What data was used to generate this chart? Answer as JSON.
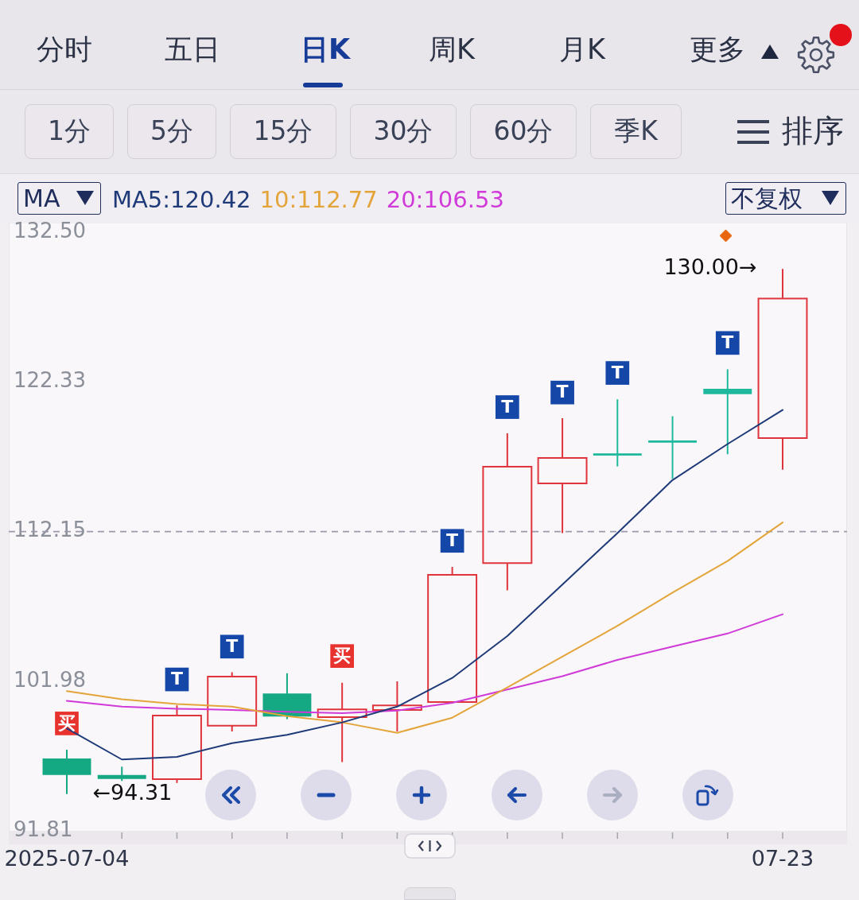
{
  "chart_data": {
    "type": "candlestick",
    "categories": [
      "2025-07-04",
      null,
      null,
      null,
      null,
      null,
      null,
      null,
      null,
      null,
      null,
      null,
      null,
      "07-23"
    ],
    "ohlc": [
      [
        96.73,
        97.32,
        94.31,
        95.6
      ],
      [
        95.6,
        96.17,
        95.2,
        95.33
      ],
      [
        95.32,
        100.34,
        95.07,
        99.65
      ],
      [
        98.95,
        102.59,
        98.56,
        102.29
      ],
      [
        101.14,
        102.52,
        99.4,
        99.58
      ],
      [
        99.54,
        101.88,
        96.49,
        100.07
      ],
      [
        100.03,
        101.97,
        98.56,
        100.34
      ],
      [
        100.57,
        109.75,
        100.5,
        109.21
      ],
      [
        110.01,
        118.83,
        108.15,
        116.56
      ],
      [
        115.42,
        119.86,
        112.05,
        117.16
      ],
      [
        117.45,
        121.14,
        116.58,
        117.33
      ],
      [
        118.27,
        119.99,
        115.74,
        118.27
      ],
      [
        121.85,
        123.18,
        117.41,
        121.49
      ],
      [
        118.5,
        130.0,
        116.35,
        127.99
      ]
    ],
    "colors": [
      "#15a983",
      "#15a983",
      "#e0343c",
      "#e0343c",
      "#15a983",
      "#e0343c",
      "#e0343c",
      "#e0343c",
      "#e0343c",
      "#e0343c",
      "#1eb89c",
      "#1eb89c",
      "#1eb89c",
      "#e0343c"
    ],
    "series": [
      {
        "name": "MA5:120.42",
        "type": "line",
        "color": "#1f3a78",
        "values": [
          98.78,
          96.66,
          96.84,
          97.77,
          98.33,
          99.18,
          100.25,
          102.2,
          105.05,
          108.55,
          112.05,
          115.65,
          118.1,
          120.42
        ]
      },
      {
        "name": "10:112.77",
        "type": "line",
        "color": "#e3a53a",
        "values": [
          101.31,
          100.75,
          100.43,
          100.25,
          99.61,
          99.18,
          98.47,
          99.5,
          101.56,
          103.65,
          105.74,
          108.0,
          110.15,
          112.77
        ]
      },
      {
        "name": "20:106.53",
        "type": "line",
        "color": "#d03ad8",
        "values": [
          100.64,
          100.25,
          100.11,
          100.03,
          99.9,
          99.81,
          99.98,
          100.51,
          101.42,
          102.32,
          103.43,
          104.33,
          105.22,
          106.53
        ]
      },
      {
        "type": "scatter",
        "color": "#1447a8",
        "marker": "square",
        "values": [
          null,
          null,
          102.1,
          104.33,
          null,
          null,
          null,
          111.52,
          120.61,
          121.6,
          122.93,
          null,
          124.97,
          null
        ],
        "value_labels": [
          null,
          null,
          "T",
          "T",
          null,
          null,
          null,
          "T",
          "T",
          "T",
          "T",
          null,
          "T",
          null
        ]
      },
      {
        "type": "scatter",
        "color": "#e8322e",
        "marker": "square",
        "values": [
          99.11,
          null,
          null,
          null,
          null,
          103.69,
          null,
          null,
          null,
          null,
          null,
          null,
          null,
          null
        ],
        "value_labels": [
          "买",
          null,
          null,
          null,
          null,
          "买",
          null,
          null,
          null,
          null,
          null,
          null,
          null,
          null
        ]
      }
    ],
    "ylim": [
      91.81,
      132.5
    ],
    "yticks": [
      {
        "value": 132.5,
        "label": "132.50"
      },
      122.33,
      112.15,
      101.98,
      91.81
    ],
    "ref_lines": [
      {
        "axis": "y",
        "value": 112.15,
        "line_style": "dashed",
        "color": "#9b9aab"
      }
    ],
    "marker": "none",
    "legend": "top left",
    "annotations": [
      "分时",
      "五日",
      "日K",
      "周K",
      "月K",
      "更多",
      "1分",
      "5分",
      "15分",
      "30分",
      "60分",
      "季K",
      "排序",
      "MA",
      "不复权",
      {
        "text": "130.00→",
        "x": "07-23",
        "y": 130.0
      },
      {
        "text": "←94.31",
        "x": "2025-07-04",
        "y": 94.31
      }
    ]
  }
}
